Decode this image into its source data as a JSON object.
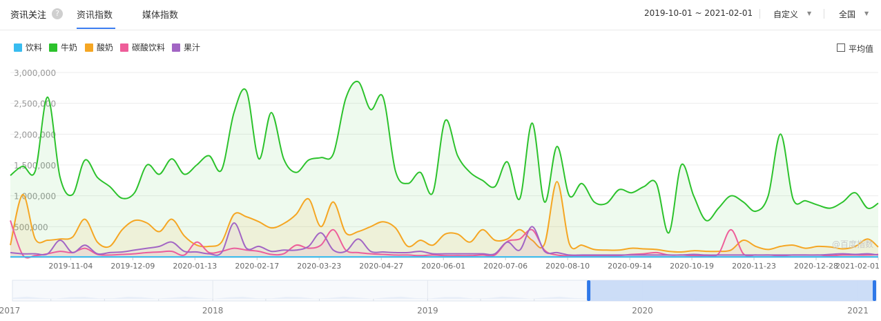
{
  "header": {
    "title": "资讯关注",
    "help_icon": "?",
    "tabs": [
      {
        "label": "资讯指数",
        "active": true
      },
      {
        "label": "媒体指数",
        "active": false
      }
    ],
    "date_range": "2019-10-01 ~ 2021-02-01",
    "custom_label": "自定义",
    "region_label": "全国"
  },
  "avg_toggle": {
    "label": "平均值",
    "checked": false
  },
  "watermark": "@百度指数",
  "colors": {
    "accent": "#3b7cf0"
  },
  "chart_data": {
    "type": "line",
    "ylim": [
      0,
      3000000
    ],
    "y_ticks": [
      "3,000,000",
      "2,500,000",
      "2,000,000",
      "1,500,000",
      "1,000,000",
      "500,000"
    ],
    "x_tick_labels": [
      "2019-11-04",
      "2019-12-09",
      "2020-01-13",
      "2020-02-17",
      "2020-03-23",
      "2020-04-27",
      "2020-06-01",
      "2020-07-06",
      "2020-08-10",
      "2020-09-14",
      "2020-10-19",
      "2020-11-23",
      "2020-12-28",
      "2021-02-01"
    ],
    "x_range": [
      "2019-10-01",
      "2021-02-01"
    ],
    "series": [
      {
        "name": "饮料",
        "color": "#38bcf0",
        "x": [
          "2019-10-01",
          "2020-06-01",
          "2021-02-01"
        ],
        "values": [
          10000,
          10000,
          10000
        ]
      },
      {
        "name": "牛奶",
        "color": "#2cc22c",
        "x": [
          "2019-10-01",
          "2019-10-08",
          "2019-10-15",
          "2019-10-22",
          "2019-10-29",
          "2019-11-05",
          "2019-11-12",
          "2019-11-19",
          "2019-11-26",
          "2019-12-03",
          "2019-12-10",
          "2019-12-17",
          "2019-12-24",
          "2019-12-31",
          "2020-01-07",
          "2020-01-14",
          "2020-01-21",
          "2020-01-28",
          "2020-02-04",
          "2020-02-11",
          "2020-02-18",
          "2020-02-25",
          "2020-03-03",
          "2020-03-10",
          "2020-03-17",
          "2020-03-24",
          "2020-03-31",
          "2020-04-07",
          "2020-04-14",
          "2020-04-21",
          "2020-04-28",
          "2020-05-05",
          "2020-05-12",
          "2020-05-19",
          "2020-05-26",
          "2020-06-02",
          "2020-06-09",
          "2020-06-16",
          "2020-06-23",
          "2020-06-30",
          "2020-07-07",
          "2020-07-14",
          "2020-07-21",
          "2020-07-28",
          "2020-08-04",
          "2020-08-11",
          "2020-08-18",
          "2020-08-25",
          "2020-09-01",
          "2020-09-08",
          "2020-09-15",
          "2020-09-22",
          "2020-09-29",
          "2020-10-06",
          "2020-10-13",
          "2020-10-20",
          "2020-10-27",
          "2020-11-03",
          "2020-11-10",
          "2020-11-17",
          "2020-11-24",
          "2020-12-01",
          "2020-12-08",
          "2020-12-15",
          "2020-12-22",
          "2020-12-29",
          "2021-01-05",
          "2021-01-12",
          "2021-01-19",
          "2021-01-26",
          "2021-02-01"
        ],
        "values": [
          1330000,
          1480000,
          1400000,
          2600000,
          1300000,
          1020000,
          1580000,
          1300000,
          1150000,
          960000,
          1050000,
          1500000,
          1350000,
          1600000,
          1350000,
          1500000,
          1650000,
          1420000,
          2350000,
          2700000,
          1600000,
          2350000,
          1600000,
          1380000,
          1580000,
          1620000,
          1680000,
          2580000,
          2850000,
          2400000,
          2600000,
          1400000,
          1200000,
          1380000,
          1050000,
          2220000,
          1650000,
          1380000,
          1250000,
          1150000,
          1550000,
          950000,
          2180000,
          900000,
          1800000,
          1000000,
          1200000,
          900000,
          880000,
          1100000,
          1050000,
          1150000,
          1200000,
          400000,
          1500000,
          1000000,
          600000,
          800000,
          1000000,
          900000,
          750000,
          1000000,
          2000000,
          950000,
          920000,
          850000,
          800000,
          900000,
          1050000,
          800000,
          880000
        ]
      },
      {
        "name": "酸奶",
        "color": "#f5a623",
        "x": [
          "2019-10-01",
          "2019-10-08",
          "2019-10-15",
          "2019-10-22",
          "2019-10-29",
          "2019-11-05",
          "2019-11-12",
          "2019-11-19",
          "2019-11-26",
          "2019-12-03",
          "2019-12-10",
          "2019-12-17",
          "2019-12-24",
          "2019-12-31",
          "2020-01-07",
          "2020-01-14",
          "2020-01-21",
          "2020-01-28",
          "2020-02-04",
          "2020-02-11",
          "2020-02-18",
          "2020-02-25",
          "2020-03-03",
          "2020-03-10",
          "2020-03-17",
          "2020-03-24",
          "2020-03-31",
          "2020-04-07",
          "2020-04-14",
          "2020-04-21",
          "2020-04-28",
          "2020-05-05",
          "2020-05-12",
          "2020-05-19",
          "2020-05-26",
          "2020-06-02",
          "2020-06-09",
          "2020-06-16",
          "2020-06-23",
          "2020-06-30",
          "2020-07-07",
          "2020-07-14",
          "2020-07-21",
          "2020-07-28",
          "2020-08-04",
          "2020-08-11",
          "2020-08-18",
          "2020-08-25",
          "2020-09-01",
          "2020-09-08",
          "2020-09-15",
          "2020-09-22",
          "2020-09-29",
          "2020-10-06",
          "2020-10-13",
          "2020-10-20",
          "2020-10-27",
          "2020-11-03",
          "2020-11-10",
          "2020-11-17",
          "2020-11-24",
          "2020-12-01",
          "2020-12-08",
          "2020-12-15",
          "2020-12-22",
          "2020-12-29",
          "2021-01-05",
          "2021-01-12",
          "2021-01-19",
          "2021-01-26",
          "2021-02-01"
        ],
        "values": [
          200000,
          1020000,
          300000,
          280000,
          300000,
          330000,
          620000,
          250000,
          180000,
          450000,
          600000,
          560000,
          420000,
          620000,
          350000,
          200000,
          180000,
          250000,
          700000,
          660000,
          580000,
          480000,
          550000,
          700000,
          950000,
          500000,
          900000,
          400000,
          420000,
          500000,
          580000,
          480000,
          180000,
          280000,
          200000,
          380000,
          380000,
          250000,
          450000,
          280000,
          300000,
          450000,
          280000,
          220000,
          1230000,
          220000,
          200000,
          130000,
          120000,
          120000,
          150000,
          140000,
          130000,
          100000,
          90000,
          110000,
          100000,
          100000,
          120000,
          280000,
          180000,
          130000,
          180000,
          200000,
          150000,
          180000,
          170000,
          140000,
          180000,
          300000,
          170000
        ]
      },
      {
        "name": "碳酸饮料",
        "color": "#ee5d99",
        "x": [
          "2019-10-01",
          "2019-10-08",
          "2019-10-15",
          "2019-10-22",
          "2019-10-29",
          "2019-11-05",
          "2019-11-12",
          "2019-11-19",
          "2019-11-26",
          "2019-12-03",
          "2019-12-10",
          "2019-12-17",
          "2019-12-24",
          "2019-12-31",
          "2020-01-07",
          "2020-01-14",
          "2020-01-21",
          "2020-01-28",
          "2020-02-04",
          "2020-02-11",
          "2020-02-18",
          "2020-02-25",
          "2020-03-03",
          "2020-03-10",
          "2020-03-17",
          "2020-03-24",
          "2020-03-31",
          "2020-04-07",
          "2020-04-14",
          "2020-04-21",
          "2020-04-28",
          "2020-05-05",
          "2020-05-12",
          "2020-05-19",
          "2020-05-26",
          "2020-06-02",
          "2020-06-09",
          "2020-06-16",
          "2020-06-23",
          "2020-06-30",
          "2020-07-07",
          "2020-07-14",
          "2020-07-21",
          "2020-07-28",
          "2020-08-04",
          "2020-08-11",
          "2020-08-18",
          "2020-08-25",
          "2020-09-01",
          "2020-09-08",
          "2020-09-15",
          "2020-09-22",
          "2020-09-29",
          "2020-10-06",
          "2020-10-13",
          "2020-10-20",
          "2020-10-27",
          "2020-11-03",
          "2020-11-10",
          "2020-11-17",
          "2020-11-24",
          "2020-12-01",
          "2020-12-08",
          "2020-12-15",
          "2020-12-22",
          "2020-12-29",
          "2021-01-05",
          "2021-01-12",
          "2021-01-19",
          "2021-01-26",
          "2021-02-01"
        ],
        "values": [
          600000,
          40000,
          30000,
          60000,
          100000,
          80000,
          150000,
          50000,
          40000,
          50000,
          60000,
          80000,
          90000,
          100000,
          40000,
          250000,
          80000,
          100000,
          150000,
          120000,
          100000,
          50000,
          60000,
          200000,
          150000,
          200000,
          450000,
          120000,
          80000,
          60000,
          50000,
          40000,
          40000,
          30000,
          40000,
          30000,
          30000,
          30000,
          40000,
          40000,
          260000,
          300000,
          450000,
          120000,
          40000,
          30000,
          30000,
          30000,
          30000,
          30000,
          50000,
          60000,
          80000,
          40000,
          40000,
          30000,
          30000,
          60000,
          450000,
          60000,
          40000,
          40000,
          30000,
          40000,
          40000,
          40000,
          30000,
          40000,
          40000,
          40000,
          50000
        ]
      },
      {
        "name": "果汁",
        "color": "#a265c4",
        "x": [
          "2019-10-01",
          "2019-10-08",
          "2019-10-15",
          "2019-10-22",
          "2019-10-29",
          "2019-11-05",
          "2019-11-12",
          "2019-11-19",
          "2019-11-26",
          "2019-12-03",
          "2019-12-10",
          "2019-12-17",
          "2019-12-24",
          "2019-12-31",
          "2020-01-07",
          "2020-01-14",
          "2020-01-21",
          "2020-01-28",
          "2020-02-04",
          "2020-02-11",
          "2020-02-18",
          "2020-02-25",
          "2020-03-03",
          "2020-03-10",
          "2020-03-17",
          "2020-03-24",
          "2020-03-31",
          "2020-04-07",
          "2020-04-14",
          "2020-04-21",
          "2020-04-28",
          "2020-05-05",
          "2020-05-12",
          "2020-05-19",
          "2020-05-26",
          "2020-06-02",
          "2020-06-09",
          "2020-06-16",
          "2020-06-23",
          "2020-06-30",
          "2020-07-07",
          "2020-07-14",
          "2020-07-21",
          "2020-07-28",
          "2020-08-04",
          "2020-08-11",
          "2020-08-18",
          "2020-08-25",
          "2020-09-01",
          "2020-09-08",
          "2020-09-15",
          "2020-09-22",
          "2020-09-29",
          "2020-10-06",
          "2020-10-13",
          "2020-10-20",
          "2020-10-27",
          "2020-11-03",
          "2020-11-10",
          "2020-11-17",
          "2020-11-24",
          "2020-12-01",
          "2020-12-08",
          "2020-12-15",
          "2020-12-22",
          "2020-12-29",
          "2021-01-05",
          "2021-01-12",
          "2021-01-19",
          "2021-01-26",
          "2021-02-01"
        ],
        "values": [
          80000,
          60000,
          60000,
          60000,
          280000,
          80000,
          200000,
          60000,
          80000,
          90000,
          120000,
          150000,
          180000,
          250000,
          100000,
          90000,
          60000,
          80000,
          560000,
          150000,
          180000,
          100000,
          120000,
          120000,
          180000,
          400000,
          120000,
          100000,
          300000,
          100000,
          90000,
          80000,
          80000,
          100000,
          60000,
          60000,
          60000,
          60000,
          60000,
          60000,
          250000,
          120000,
          500000,
          100000,
          80000,
          40000,
          40000,
          40000,
          40000,
          40000,
          40000,
          40000,
          40000,
          40000,
          40000,
          50000,
          40000,
          40000,
          40000,
          40000,
          40000,
          40000,
          40000,
          40000,
          40000,
          40000,
          50000,
          60000,
          50000,
          60000,
          40000
        ]
      }
    ]
  },
  "navigator": {
    "year_labels": [
      "2017",
      "2018",
      "2019",
      "2020",
      "2021"
    ],
    "selection_range": [
      "2019-10-01",
      "2021-02-01"
    ]
  }
}
